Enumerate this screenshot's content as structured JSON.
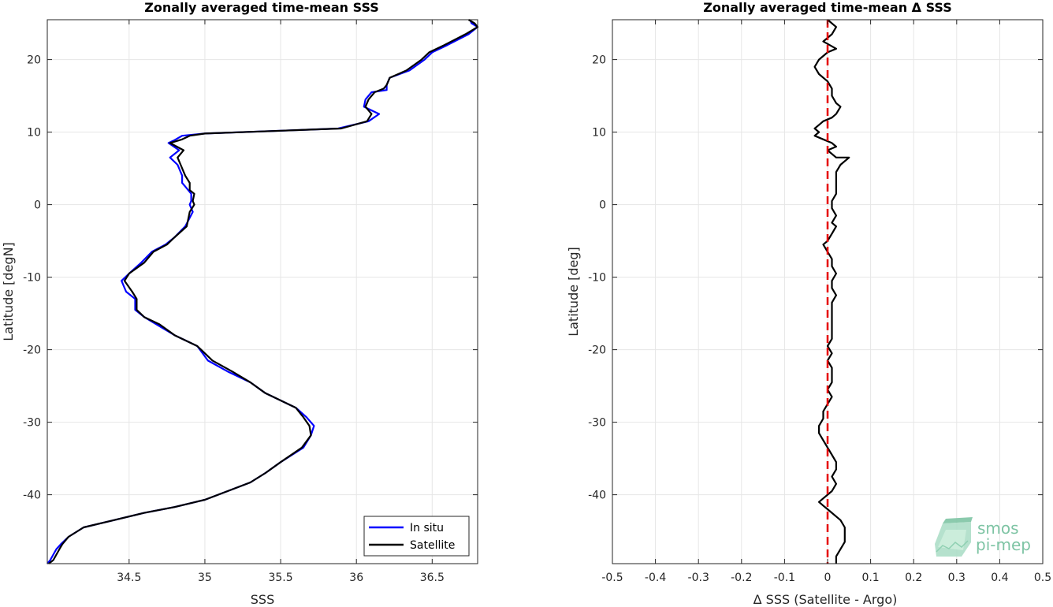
{
  "colors": {
    "in_situ": "#0000ff",
    "satellite": "#000000",
    "zero_line": "#e60000",
    "grid": "#e6e6e6",
    "logo": "#7ec4a4"
  },
  "logo": {
    "line1": "smos",
    "line2": "pi-mep",
    "icon": "smos-pimep-logo"
  },
  "chart_data": [
    {
      "type": "line",
      "title": "Zonally averaged time-mean SSS",
      "xlabel": "SSS",
      "ylabel": "Latitude [degN]",
      "xlim": [
        33.96,
        36.8
      ],
      "ylim": [
        -49.5,
        25.5
      ],
      "xticks": [
        34.5,
        35,
        35.5,
        36,
        36.5
      ],
      "xtick_labels": [
        "34.5",
        "35",
        "35.5",
        "36",
        "36.5"
      ],
      "yticks": [
        20,
        10,
        0,
        -10,
        -20,
        -30,
        -40
      ],
      "ytick_labels": [
        "20",
        "10",
        "0",
        "-10",
        "-20",
        "-30",
        "-40"
      ],
      "grid": true,
      "legend_position": "bottom-right",
      "series": [
        {
          "name": "In situ",
          "color": "#0000ff",
          "points": [
            [
              36.75,
              25.5
            ],
            [
              36.76,
              25
            ],
            [
              36.8,
              24.5
            ],
            [
              36.74,
              23.5
            ],
            [
              36.6,
              22
            ],
            [
              36.5,
              21
            ],
            [
              36.45,
              20
            ],
            [
              36.35,
              18.5
            ],
            [
              36.22,
              17.5
            ],
            [
              36.2,
              16.5
            ],
            [
              36.2,
              15.8
            ],
            [
              36.1,
              15.5
            ],
            [
              36.06,
              14.5
            ],
            [
              36.05,
              13.5
            ],
            [
              36.15,
              12.5
            ],
            [
              36.08,
              11.5
            ],
            [
              35.88,
              10.5
            ],
            [
              35.5,
              10.2
            ],
            [
              35.0,
              9.8
            ],
            [
              34.85,
              9.5
            ],
            [
              34.8,
              8.9
            ],
            [
              34.76,
              8.5
            ],
            [
              34.83,
              7.5
            ],
            [
              34.77,
              6.5
            ],
            [
              34.82,
              5.5
            ],
            [
              34.85,
              4
            ],
            [
              34.85,
              3
            ],
            [
              34.87,
              2.5
            ],
            [
              34.91,
              1.5
            ],
            [
              34.91,
              0.5
            ],
            [
              34.9,
              0
            ],
            [
              34.92,
              -1
            ],
            [
              34.87,
              -3
            ],
            [
              34.8,
              -4.5
            ],
            [
              34.74,
              -5.5
            ],
            [
              34.65,
              -6.5
            ],
            [
              34.58,
              -8
            ],
            [
              34.5,
              -9.5
            ],
            [
              34.45,
              -10.5
            ],
            [
              34.48,
              -12
            ],
            [
              34.54,
              -13
            ],
            [
              34.54,
              -14.5
            ],
            [
              34.6,
              -15.5
            ],
            [
              34.68,
              -16.5
            ],
            [
              34.8,
              -18
            ],
            [
              34.95,
              -19.5
            ],
            [
              35.02,
              -21.5
            ],
            [
              35.15,
              -23
            ],
            [
              35.3,
              -24.5
            ],
            [
              35.4,
              -26
            ],
            [
              35.5,
              -27
            ],
            [
              35.6,
              -28
            ],
            [
              35.67,
              -29.3
            ],
            [
              35.72,
              -30.5
            ],
            [
              35.7,
              -31.8
            ],
            [
              35.65,
              -33.5
            ],
            [
              35.5,
              -35.5
            ],
            [
              35.4,
              -37
            ],
            [
              35.3,
              -38.3
            ],
            [
              35.15,
              -39.5
            ],
            [
              35.0,
              -40.7
            ],
            [
              34.8,
              -41.7
            ],
            [
              34.6,
              -42.5
            ],
            [
              34.4,
              -43.5
            ],
            [
              34.2,
              -44.5
            ],
            [
              34.1,
              -45.8
            ],
            [
              34.05,
              -46.8
            ],
            [
              34.02,
              -47.5
            ],
            [
              33.98,
              -49
            ],
            [
              33.96,
              -49.5
            ]
          ]
        },
        {
          "name": "Satellite",
          "color": "#000000",
          "points": [
            [
              36.74,
              25.5
            ],
            [
              36.78,
              25
            ],
            [
              36.8,
              24.5
            ],
            [
              36.72,
              23.5
            ],
            [
              36.58,
              22
            ],
            [
              36.48,
              21
            ],
            [
              36.43,
              20
            ],
            [
              36.33,
              18.5
            ],
            [
              36.22,
              17.5
            ],
            [
              36.2,
              16.5
            ],
            [
              36.18,
              16
            ],
            [
              36.12,
              15.5
            ],
            [
              36.08,
              14.5
            ],
            [
              36.06,
              13.5
            ],
            [
              36.1,
              12.5
            ],
            [
              36.07,
              11.5
            ],
            [
              35.9,
              10.5
            ],
            [
              35.5,
              10.2
            ],
            [
              35.0,
              9.8
            ],
            [
              34.9,
              9.5
            ],
            [
              34.85,
              9
            ],
            [
              34.77,
              8.5
            ],
            [
              34.86,
              7.5
            ],
            [
              34.82,
              6.5
            ],
            [
              34.84,
              5.5
            ],
            [
              34.87,
              4
            ],
            [
              34.9,
              3
            ],
            [
              34.9,
              2
            ],
            [
              34.93,
              1.5
            ],
            [
              34.92,
              0.5
            ],
            [
              34.93,
              0
            ],
            [
              34.9,
              -1
            ],
            [
              34.88,
              -3
            ],
            [
              34.8,
              -4.5
            ],
            [
              34.75,
              -5.5
            ],
            [
              34.66,
              -6.5
            ],
            [
              34.6,
              -8
            ],
            [
              34.5,
              -9.5
            ],
            [
              34.47,
              -10.5
            ],
            [
              34.52,
              -12
            ],
            [
              34.55,
              -13
            ],
            [
              34.55,
              -14.5
            ],
            [
              34.6,
              -15.5
            ],
            [
              34.7,
              -16.5
            ],
            [
              34.8,
              -18
            ],
            [
              34.95,
              -19.5
            ],
            [
              35.05,
              -21.5
            ],
            [
              35.18,
              -23
            ],
            [
              35.3,
              -24.5
            ],
            [
              35.4,
              -26
            ],
            [
              35.5,
              -27
            ],
            [
              35.6,
              -28
            ],
            [
              35.65,
              -29.3
            ],
            [
              35.69,
              -30.5
            ],
            [
              35.7,
              -31.8
            ],
            [
              35.64,
              -33.5
            ],
            [
              35.5,
              -35.5
            ],
            [
              35.4,
              -37
            ],
            [
              35.3,
              -38.3
            ],
            [
              35.15,
              -39.5
            ],
            [
              35.0,
              -40.7
            ],
            [
              34.8,
              -41.7
            ],
            [
              34.6,
              -42.5
            ],
            [
              34.4,
              -43.5
            ],
            [
              34.2,
              -44.5
            ],
            [
              34.1,
              -45.8
            ],
            [
              34.06,
              -46.8
            ],
            [
              34.04,
              -47.5
            ],
            [
              34.0,
              -49
            ],
            [
              33.97,
              -49.5
            ]
          ]
        }
      ]
    },
    {
      "type": "line",
      "title": "Zonally averaged time-mean Δ SSS",
      "xlabel": "Δ SSS (Satellite - Argo)",
      "ylabel": "Latitude [deg]",
      "xlim": [
        -0.5,
        0.5
      ],
      "ylim": [
        -49.5,
        25.5
      ],
      "xticks": [
        -0.5,
        -0.4,
        -0.3,
        -0.2,
        -0.1,
        0,
        0.1,
        0.2,
        0.3,
        0.4,
        0.5
      ],
      "xtick_labels": [
        "-0.5",
        "-0.4",
        "-0.3",
        "-0.2",
        "-0.1",
        "0",
        "0.1",
        "0.2",
        "0.3",
        "0.4",
        "0.5"
      ],
      "yticks": [
        20,
        10,
        0,
        -10,
        -20,
        -30,
        -40
      ],
      "ytick_labels": [
        "20",
        "10",
        "0",
        "-10",
        "-20",
        "-30",
        "-40"
      ],
      "grid": true,
      "series": [
        {
          "color": "#000000",
          "points": [
            [
              0.0,
              25.5
            ],
            [
              0.02,
              24.5
            ],
            [
              0.01,
              23.5
            ],
            [
              -0.01,
              22.5
            ],
            [
              0.02,
              21.5
            ],
            [
              0.0,
              21
            ],
            [
              -0.02,
              20
            ],
            [
              -0.03,
              19
            ],
            [
              -0.02,
              18
            ],
            [
              0.0,
              17
            ],
            [
              0.01,
              16
            ],
            [
              0.01,
              15
            ],
            [
              0.02,
              14
            ],
            [
              0.03,
              13.5
            ],
            [
              0.02,
              12.5
            ],
            [
              0.01,
              12
            ],
            [
              -0.01,
              11.5
            ],
            [
              -0.02,
              11
            ],
            [
              -0.03,
              10.5
            ],
            [
              -0.02,
              10
            ],
            [
              -0.03,
              9.5
            ],
            [
              -0.01,
              9
            ],
            [
              0.01,
              8.5
            ],
            [
              0.02,
              8
            ],
            [
              0.0,
              7.5
            ],
            [
              0.02,
              6.5
            ],
            [
              0.05,
              6.5
            ],
            [
              0.03,
              5.5
            ],
            [
              0.02,
              4.5
            ],
            [
              0.02,
              3.5
            ],
            [
              0.02,
              2.5
            ],
            [
              0.02,
              1.5
            ],
            [
              0.01,
              0.5
            ],
            [
              0.01,
              -0.5
            ],
            [
              0.02,
              -1.5
            ],
            [
              0.01,
              -2.5
            ],
            [
              0.02,
              -3
            ],
            [
              0.01,
              -4
            ],
            [
              0.0,
              -5
            ],
            [
              -0.01,
              -5.5
            ],
            [
              0.0,
              -6.5
            ],
            [
              0.01,
              -7.5
            ],
            [
              0.01,
              -8.5
            ],
            [
              0.02,
              -9.5
            ],
            [
              0.01,
              -10.5
            ],
            [
              0.01,
              -11.5
            ],
            [
              0.02,
              -12.5
            ],
            [
              0.01,
              -13.5
            ],
            [
              0.01,
              -14.5
            ],
            [
              0.01,
              -15.5
            ],
            [
              0.01,
              -16.5
            ],
            [
              0.01,
              -17.5
            ],
            [
              0.01,
              -18.5
            ],
            [
              0.0,
              -19.5
            ],
            [
              0.01,
              -20.5
            ],
            [
              0.0,
              -21.5
            ],
            [
              0.01,
              -22.5
            ],
            [
              0.01,
              -23.5
            ],
            [
              0.01,
              -24.5
            ],
            [
              0.0,
              -25.5
            ],
            [
              0.01,
              -26.5
            ],
            [
              0.0,
              -27.5
            ],
            [
              -0.01,
              -28.5
            ],
            [
              -0.01,
              -29.5
            ],
            [
              -0.02,
              -30.5
            ],
            [
              -0.02,
              -31.5
            ],
            [
              -0.01,
              -32.5
            ],
            [
              0.0,
              -33.5
            ],
            [
              0.01,
              -34.5
            ],
            [
              0.02,
              -35.5
            ],
            [
              0.02,
              -36.5
            ],
            [
              0.01,
              -37.5
            ],
            [
              0.02,
              -38.5
            ],
            [
              0.01,
              -39.5
            ],
            [
              -0.01,
              -40.5
            ],
            [
              -0.02,
              -41
            ],
            [
              -0.01,
              -41.5
            ],
            [
              0.0,
              -42
            ],
            [
              0.01,
              -42.5
            ],
            [
              0.02,
              -43
            ],
            [
              0.03,
              -43.5
            ],
            [
              0.04,
              -44.5
            ],
            [
              0.04,
              -45.5
            ],
            [
              0.04,
              -46.5
            ],
            [
              0.03,
              -47.5
            ],
            [
              0.02,
              -48.5
            ],
            [
              0.02,
              -49.5
            ]
          ]
        }
      ],
      "reference_line": {
        "x": 0,
        "style": "dashed",
        "color": "#e60000"
      }
    }
  ]
}
